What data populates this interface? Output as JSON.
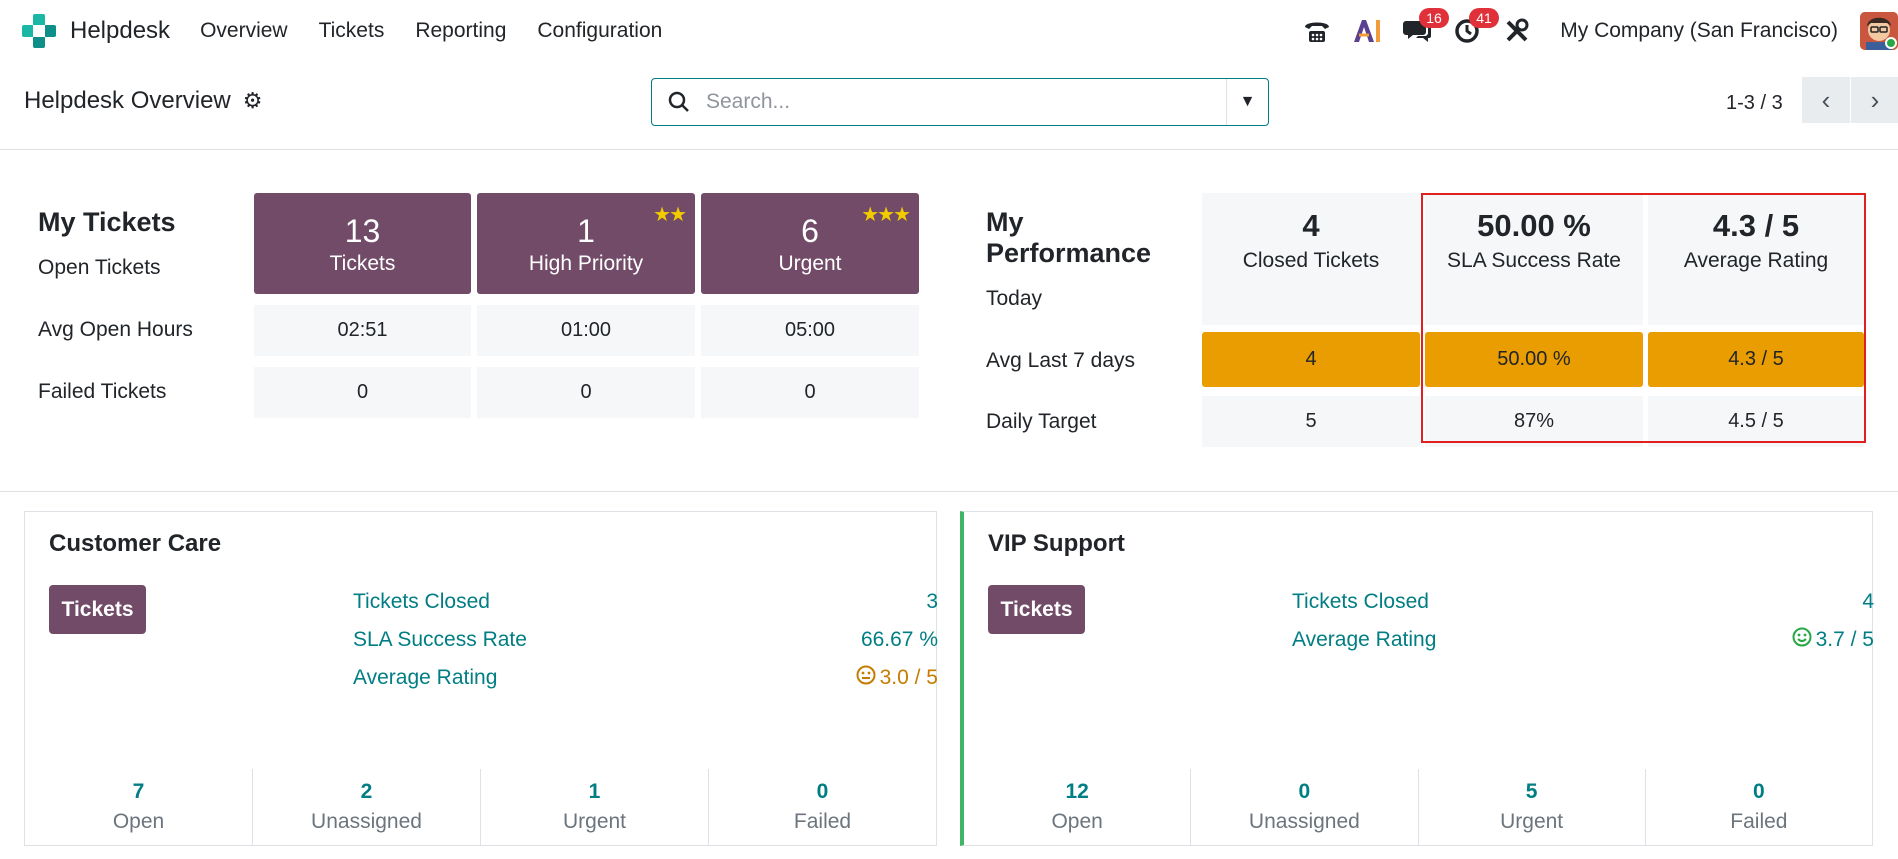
{
  "app": {
    "name": "Helpdesk"
  },
  "menu": [
    "Overview",
    "Tickets",
    "Reporting",
    "Configuration"
  ],
  "systray": {
    "messages_badge": "16",
    "activities_badge": "41",
    "company": "My Company (San Francisco)"
  },
  "control": {
    "title": "Helpdesk Overview",
    "search_placeholder": "Search...",
    "pager": "1-3 / 3"
  },
  "my_tickets": {
    "title": "My Tickets",
    "row_labels": [
      "Open Tickets",
      "Avg Open Hours",
      "Failed Tickets"
    ],
    "columns": [
      {
        "count": "13",
        "label": "Tickets",
        "stars": "",
        "avg_hours": "02:51",
        "failed": "0"
      },
      {
        "count": "1",
        "label": "High Priority",
        "stars": "★★",
        "avg_hours": "01:00",
        "failed": "0"
      },
      {
        "count": "6",
        "label": "Urgent",
        "stars": "★★★",
        "avg_hours": "05:00",
        "failed": "0"
      }
    ]
  },
  "my_performance": {
    "title_line1": "My",
    "title_line2": "Performance",
    "row_labels": [
      "Today",
      "Avg Last 7 days",
      "Daily Target"
    ],
    "columns": [
      {
        "today": "4",
        "label": "Closed Tickets",
        "avg7": "4",
        "target": "5"
      },
      {
        "today": "50.00 %",
        "label": "SLA Success Rate",
        "avg7": "50.00 %",
        "target": "87%"
      },
      {
        "today": "4.3 / 5",
        "label": "Average Rating",
        "avg7": "4.3 / 5",
        "target": "4.5 / 5"
      }
    ]
  },
  "teams": [
    {
      "name": "Customer Care",
      "button": "Tickets",
      "stats": [
        {
          "label": "Tickets Closed",
          "value": "3",
          "face": ""
        },
        {
          "label": "SLA Success Rate",
          "value": "66.67 %",
          "face": ""
        },
        {
          "label": "Average Rating",
          "value": "3.0 / 5",
          "face": "neutral"
        }
      ],
      "counters": [
        {
          "num": "7",
          "label": "Open"
        },
        {
          "num": "2",
          "label": "Unassigned"
        },
        {
          "num": "1",
          "label": "Urgent"
        },
        {
          "num": "0",
          "label": "Failed"
        }
      ]
    },
    {
      "name": "VIP Support",
      "button": "Tickets",
      "stats": [
        {
          "label": "Tickets Closed",
          "value": "4",
          "face": ""
        },
        {
          "label": "Average Rating",
          "value": "3.7 / 5",
          "face": "happy"
        }
      ],
      "counters": [
        {
          "num": "12",
          "label": "Open"
        },
        {
          "num": "0",
          "label": "Unassigned"
        },
        {
          "num": "5",
          "label": "Urgent"
        },
        {
          "num": "0",
          "label": "Failed"
        }
      ]
    }
  ],
  "colors": {
    "primary": "#714b67",
    "accent": "#017e84",
    "orange": "#e99d00",
    "neutral_face": "#c67c00",
    "happy_face": "#28a745",
    "highlight": "#e02020"
  }
}
